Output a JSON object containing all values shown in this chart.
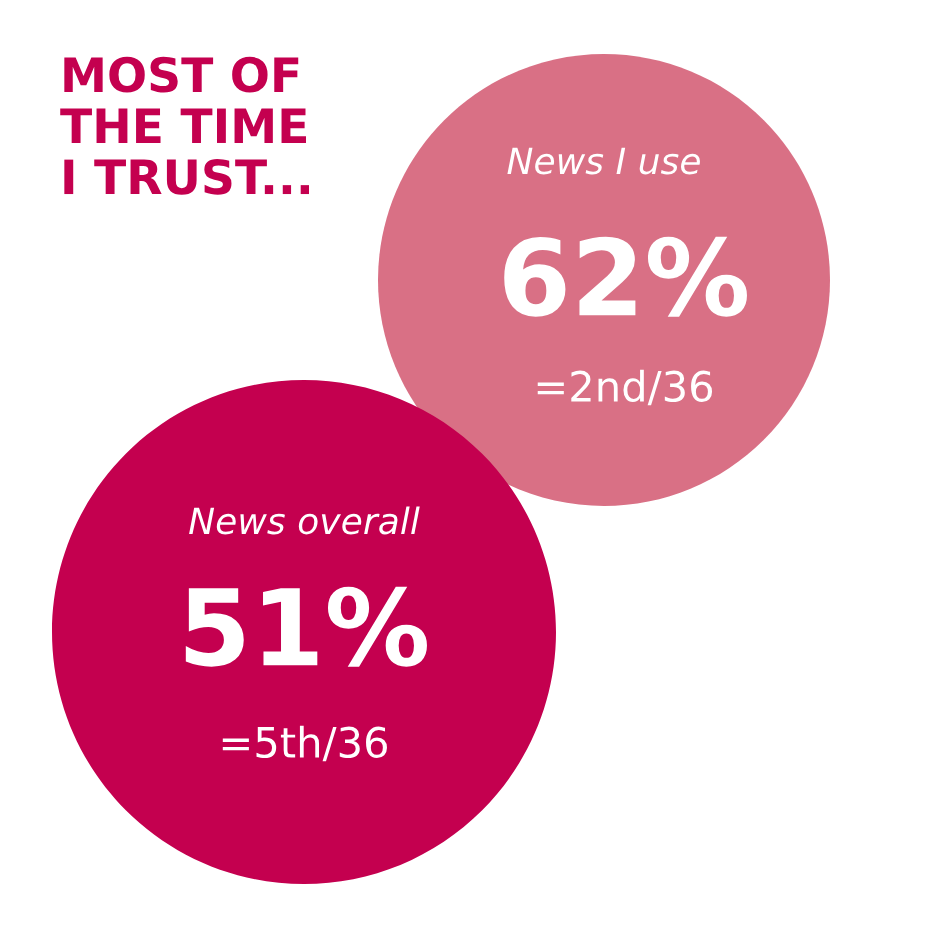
{
  "chart_data": {
    "type": "other",
    "title": "MOST OF\nTHE TIME\nI TRUST...",
    "categories": [
      "News I use",
      "News overall"
    ],
    "values": [
      62,
      51
    ],
    "value_labels": [
      "62%",
      "51%"
    ],
    "colors": [
      "#d97085",
      "#c4004f"
    ],
    "annotations": [
      "=2nd/36",
      "=5th/36"
    ]
  }
}
